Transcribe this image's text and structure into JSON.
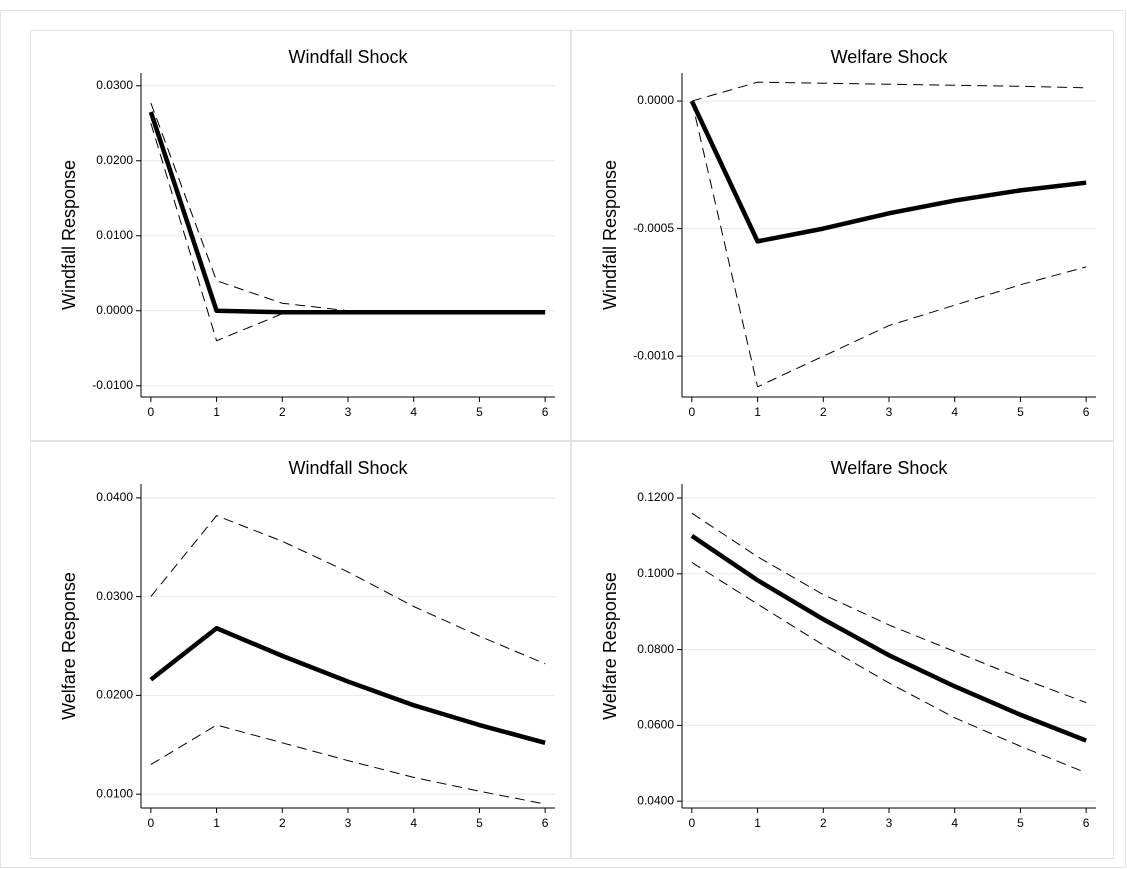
{
  "chart_data": [
    {
      "type": "line",
      "title": "Windfall Shock",
      "ylabel": "Windfall Response",
      "x": [
        0,
        1,
        2,
        3,
        4,
        5,
        6
      ],
      "xlim": [
        -0.15,
        6.15
      ],
      "xticks": [
        0,
        1,
        2,
        3,
        4,
        5,
        6
      ],
      "ylim": [
        -0.0115,
        0.0317
      ],
      "yticks": [
        {
          "value": -0.01,
          "label": "-0.0100"
        },
        {
          "value": 0,
          "label": "0.0000"
        },
        {
          "value": 0.01,
          "label": "0.0100"
        },
        {
          "value": 0.02,
          "label": "0.0200"
        },
        {
          "value": 0.03,
          "label": "0.0300"
        }
      ],
      "grid": true,
      "series": [
        {
          "color": "#000000",
          "line_style": "solid",
          "values": [
            0.0265,
            0.0,
            -0.0002,
            -0.0002,
            -0.0002,
            -0.0002,
            -0.0002
          ]
        },
        {
          "color": "#000000",
          "line_style": "dashed",
          "values": [
            0.0277,
            0.004,
            0.001,
            0.0,
            -0.0002,
            -0.0002,
            -0.0002
          ]
        },
        {
          "color": "#000000",
          "line_style": "dashed",
          "values": [
            0.025,
            -0.004,
            -0.0004,
            -0.0002,
            -0.0002,
            -0.0002,
            -0.0002
          ]
        }
      ]
    },
    {
      "type": "line",
      "title": "Welfare Shock",
      "ylabel": "Windfall Response",
      "x": [
        0,
        1,
        2,
        3,
        4,
        5,
        6
      ],
      "xlim": [
        -0.15,
        6.15
      ],
      "xticks": [
        0,
        1,
        2,
        3,
        4,
        5,
        6
      ],
      "ylim": [
        -0.00116,
        0.00011
      ],
      "yticks": [
        {
          "value": -0.001,
          "label": "-0.0010"
        },
        {
          "value": -0.0005,
          "label": "-0.0005"
        },
        {
          "value": 0,
          "label": "0.0000"
        }
      ],
      "grid": true,
      "series": [
        {
          "color": "#000000",
          "line_style": "solid",
          "values": [
            0,
            -0.00055,
            -0.0005,
            -0.00044,
            -0.00039,
            -0.00035,
            -0.00032
          ]
        },
        {
          "color": "#000000",
          "line_style": "dashed",
          "values": [
            0,
            7.4e-05,
            7e-05,
            6.6e-05,
            6.2e-05,
            5.8e-05,
            5.2e-05
          ]
        },
        {
          "color": "#000000",
          "line_style": "dashed",
          "values": [
            0,
            -0.00112,
            -0.001,
            -0.00088,
            -0.0008,
            -0.00072,
            -0.00065
          ]
        }
      ]
    },
    {
      "type": "line",
      "title": "Windfall Shock",
      "ylabel": "Welfare Response",
      "x": [
        0,
        1,
        2,
        3,
        4,
        5,
        6
      ],
      "xlim": [
        -0.15,
        6.15
      ],
      "xticks": [
        0,
        1,
        2,
        3,
        4,
        5,
        6
      ],
      "ylim": [
        0.0086,
        0.0414
      ],
      "yticks": [
        {
          "value": 0.01,
          "label": "0.0100"
        },
        {
          "value": 0.02,
          "label": "0.0200"
        },
        {
          "value": 0.03,
          "label": "0.0300"
        },
        {
          "value": 0.04,
          "label": "0.0400"
        }
      ],
      "grid": true,
      "series": [
        {
          "color": "#000000",
          "line_style": "solid",
          "values": [
            0.0216,
            0.0268,
            0.024,
            0.0214,
            0.019,
            0.017,
            0.0152
          ]
        },
        {
          "color": "#000000",
          "line_style": "dashed",
          "values": [
            0.03,
            0.0382,
            0.0356,
            0.0325,
            0.029,
            0.026,
            0.0232
          ]
        },
        {
          "color": "#000000",
          "line_style": "dashed",
          "values": [
            0.013,
            0.017,
            0.0152,
            0.0134,
            0.0117,
            0.0103,
            0.009
          ]
        }
      ]
    },
    {
      "type": "line",
      "title": "Welfare Shock",
      "ylabel": "Welfare Response",
      "x": [
        0,
        1,
        2,
        3,
        4,
        5,
        6
      ],
      "xlim": [
        -0.15,
        6.15
      ],
      "xticks": [
        0,
        1,
        2,
        3,
        4,
        5,
        6
      ],
      "ylim": [
        0.0382,
        0.1237
      ],
      "yticks": [
        {
          "value": 0.04,
          "label": "0.0400"
        },
        {
          "value": 0.06,
          "label": "0.0600"
        },
        {
          "value": 0.08,
          "label": "0.0800"
        },
        {
          "value": 0.1,
          "label": "0.1000"
        },
        {
          "value": 0.12,
          "label": "0.1200"
        }
      ],
      "grid": true,
      "series": [
        {
          "color": "#000000",
          "line_style": "solid",
          "values": [
            0.11,
            0.0983,
            0.088,
            0.0785,
            0.0703,
            0.0628,
            0.056
          ]
        },
        {
          "color": "#000000",
          "line_style": "dashed",
          "values": [
            0.116,
            0.1045,
            0.0945,
            0.0865,
            0.0795,
            0.0725,
            0.066
          ]
        },
        {
          "color": "#000000",
          "line_style": "dashed",
          "values": [
            0.103,
            0.092,
            0.0812,
            0.0712,
            0.062,
            0.0545,
            0.0475
          ]
        }
      ]
    }
  ]
}
